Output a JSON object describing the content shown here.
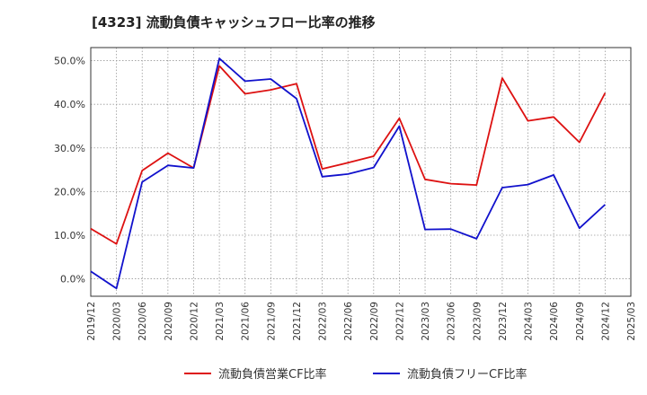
{
  "chart_data": {
    "type": "line",
    "title": "[4323]  流動負債キャッシュフロー比率の推移",
    "x": [
      "2019/12",
      "2020/03",
      "2020/06",
      "2020/09",
      "2020/12",
      "2021/03",
      "2021/06",
      "2021/09",
      "2021/12",
      "2022/03",
      "2022/06",
      "2022/09",
      "2022/12",
      "2023/03",
      "2023/06",
      "2023/09",
      "2023/12",
      "2024/03",
      "2024/06",
      "2024/09",
      "2024/12"
    ],
    "x_ticks": [
      "2019/12",
      "2020/03",
      "2020/06",
      "2020/09",
      "2020/12",
      "2021/03",
      "2021/06",
      "2021/09",
      "2021/12",
      "2022/03",
      "2022/06",
      "2022/09",
      "2022/12",
      "2023/03",
      "2023/06",
      "2023/09",
      "2023/12",
      "2024/03",
      "2024/06",
      "2024/09",
      "2024/12",
      "2025/03"
    ],
    "y_ticks": [
      "0.0%",
      "10.0%",
      "20.0%",
      "30.0%",
      "40.0%",
      "50.0%"
    ],
    "ylim": [
      -4,
      53
    ],
    "xlabel": "",
    "ylabel": "",
    "grid": true,
    "legend_position": "bottom",
    "series": [
      {
        "name": "流動負債営業CF比率",
        "color": "#dd1111",
        "values": [
          11.5,
          8.0,
          24.8,
          28.8,
          25.4,
          48.8,
          42.4,
          43.3,
          44.7,
          25.2,
          26.6,
          28.1,
          36.8,
          22.8,
          21.8,
          21.5,
          46.0,
          36.2,
          37.1,
          31.3,
          42.6
        ]
      },
      {
        "name": "流動負債フリーCF比率",
        "color": "#1111cc",
        "values": [
          1.7,
          -2.2,
          22.2,
          26.0,
          25.4,
          50.5,
          45.3,
          45.8,
          41.3,
          23.4,
          24.0,
          25.5,
          35.0,
          11.3,
          11.4,
          9.2,
          20.9,
          21.6,
          23.8,
          11.6,
          17.0
        ]
      }
    ]
  }
}
